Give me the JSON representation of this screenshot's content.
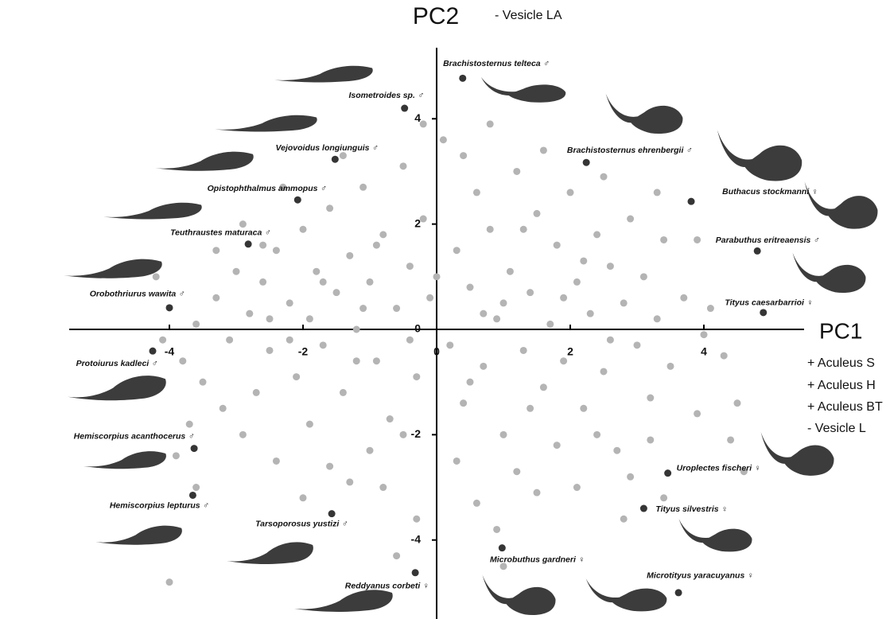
{
  "chart_data": {
    "type": "scatter",
    "x_label": "PC1",
    "y_label": "PC2",
    "annotations": [
      "- Vesicle LA",
      "+ Aculeus S",
      "+ Aculeus H",
      "+ Aculeus BT",
      "- Vesicle L"
    ],
    "xlim": [
      -5.5,
      5.5
    ],
    "ylim": [
      -5.5,
      5.5
    ],
    "xticks": [
      -4,
      -2,
      0,
      2,
      4
    ],
    "yticks": [
      -4,
      -2,
      0,
      2,
      4
    ],
    "series": [
      {
        "color": "#b4b4b4",
        "x": [
          -3.6,
          -3.3,
          -3.0,
          -2.8,
          -2.6,
          -2.5,
          -2.4,
          -2.2,
          -2.1,
          -2.0,
          -1.9,
          -1.8,
          -1.7,
          -1.6,
          -1.5,
          -1.4,
          -1.3,
          -1.2,
          -1.1,
          -1.0,
          -0.9,
          -0.8,
          -0.7,
          -0.6,
          -0.5,
          -0.4,
          -0.3,
          -0.2,
          -0.1,
          0.1,
          0.2,
          0.3,
          0.4,
          0.5,
          0.6,
          0.7,
          0.8,
          0.9,
          1.0,
          1.1,
          1.2,
          1.3,
          1.4,
          1.5,
          1.6,
          1.7,
          1.8,
          1.9,
          2.0,
          2.1,
          2.2,
          2.3,
          2.4,
          2.5,
          2.6,
          2.7,
          2.8,
          2.9,
          3.0,
          3.1,
          3.2,
          3.3,
          3.4,
          3.5,
          3.7,
          3.9,
          4.1,
          4.3,
          4.5,
          -3.8,
          -3.5,
          -3.2,
          -2.9,
          -2.7,
          -2.4,
          -2.3,
          -2.9,
          -3.3,
          -1.9,
          -1.6,
          -1.4,
          -1.0,
          -0.8,
          -0.5,
          -0.3,
          -0.2,
          0.3,
          0.6,
          0.9,
          1.2,
          1.5,
          1.8,
          2.1,
          2.4,
          2.9,
          3.2,
          0.4,
          0.8,
          1.6,
          2.5,
          3.3,
          3.9,
          4.0,
          4.4,
          -4.2,
          -3.9,
          -3.7,
          -4.1,
          -4.0,
          -3.6,
          -2.0,
          -1.3,
          -0.6,
          1.0,
          2.8,
          3.4,
          4.6,
          -1.2,
          -2.2,
          -0.4,
          1.0,
          1.9,
          2.6,
          -1.7,
          -2.6,
          0,
          -0.9,
          0.5,
          1.4,
          2.2,
          -3.1,
          -2.5,
          -1.1,
          1.3,
          0.7
        ],
        "values": [
          0.1,
          0.6,
          1.1,
          0.3,
          0.9,
          -0.4,
          1.5,
          0.5,
          -0.9,
          1.9,
          0.2,
          1.1,
          -0.3,
          2.3,
          0.7,
          -1.2,
          1.4,
          0,
          2.7,
          0.9,
          -0.6,
          1.8,
          -1.7,
          0.4,
          3.1,
          1.2,
          -0.9,
          2.1,
          0.6,
          3.6,
          -0.3,
          1.5,
          -1.4,
          0.8,
          2.6,
          -0.7,
          1.9,
          0.2,
          -2.0,
          1.1,
          3.0,
          -0.4,
          0.7,
          2.2,
          -1.1,
          0.1,
          1.6,
          -0.6,
          2.6,
          0.9,
          -1.5,
          0.3,
          1.8,
          -0.8,
          1.2,
          -2.3,
          0.5,
          2.1,
          -0.3,
          1.0,
          -1.3,
          0.2,
          1.7,
          -0.7,
          0.6,
          -1.6,
          0.4,
          -0.5,
          -1.4,
          -0.6,
          -1.0,
          -1.5,
          -2.0,
          -1.2,
          -2.5,
          2.7,
          2.0,
          1.5,
          -1.8,
          -2.6,
          3.3,
          -2.3,
          -3.0,
          -2.0,
          -3.6,
          3.9,
          -2.5,
          -3.3,
          -3.8,
          -2.7,
          -3.1,
          -2.2,
          -3.0,
          -2.0,
          -2.8,
          -2.1,
          3.3,
          3.9,
          3.4,
          2.9,
          2.6,
          1.7,
          -0.1,
          -2.1,
          1.0,
          -2.4,
          -1.8,
          -0.2,
          -4.8,
          -3.0,
          -3.2,
          -2.9,
          -4.3,
          -4.5,
          -3.6,
          -3.2,
          -2.7,
          -0.6,
          -0.2,
          -0.2,
          0.5,
          0.6,
          -0.2,
          0.9,
          1.6,
          1.0,
          1.6,
          -1.0,
          -1.5,
          1.3,
          -0.2,
          0.2,
          0.4,
          1.9,
          0.3
        ]
      },
      {
        "color": "#353535",
        "x": [
          0.39,
          -0.48,
          -1.52,
          -2.08,
          -2.82,
          -4.0,
          -4.25,
          -3.63,
          -3.65,
          -1.57,
          -0.32,
          0.98,
          3.62,
          3.1,
          3.46,
          4.89,
          4.8,
          3.81,
          2.24
        ],
        "values": [
          4.77,
          4.2,
          3.23,
          2.46,
          1.62,
          0.41,
          -0.41,
          -2.26,
          -3.15,
          -3.5,
          -4.62,
          -4.15,
          -5.0,
          -3.4,
          -2.73,
          0.32,
          1.49,
          2.43,
          3.17
        ],
        "labels": [
          "Brachistosternus telteca ♂",
          "Isometroides sp. ♂",
          "Vejovoidus longiunguis ♂",
          "Opistophthalmus ammopus ♂",
          "Teuthraustes maturaca ♂",
          "Orobothriurus wawita ♂",
          "Protoiurus kadleci ♂",
          "Hemiscorpius acanthocerus ♂",
          "Hemiscorpius lepturus ♂",
          "Tarsoporosus yustizi ♂",
          "Reddyanus corbeti ♀",
          "Microbuthus gardneri ♀",
          "Microtityus yaracuyanus ♀",
          "Tityus silvestris ♀",
          "Uroplectes fischeri ♀",
          "Tityus caesarbarrioi ♀",
          "Parabuthus eritreaensis ♂",
          "Buthacus stockmanni ♀",
          "Brachistosternus ehrenbergii ♂"
        ]
      }
    ]
  }
}
